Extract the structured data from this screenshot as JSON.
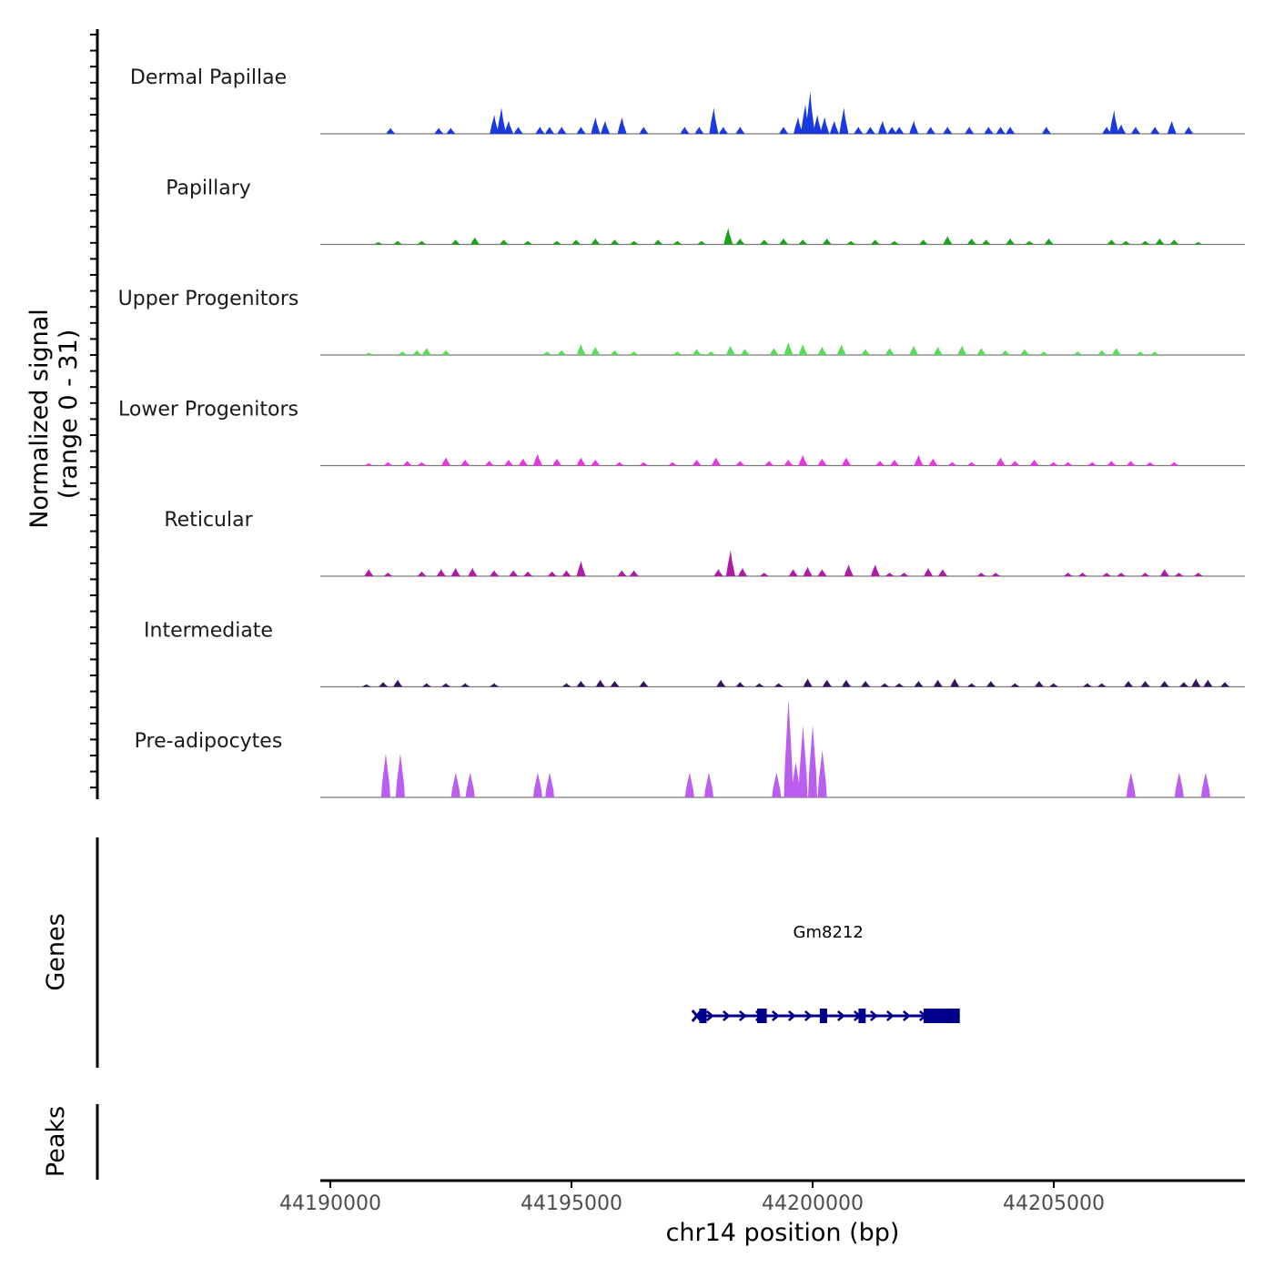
{
  "chart_data": {
    "type": "area",
    "title": "",
    "ylabel": "Normalized signal",
    "ylabel_range": "(range 0 - 31)",
    "ylim": [
      0,
      31
    ],
    "xlabel": "chr14 position (bp)",
    "xlim": [
      44189900,
      44209100
    ],
    "xticks": [
      44190000,
      44195000,
      44200000,
      44205000
    ],
    "xtick_labels": [
      "44190000",
      "44195000",
      "44200000",
      "44205000"
    ],
    "series": [
      {
        "name": "Dermal Papillae",
        "color": "#1a3ae0",
        "peaks": [
          [
            44191250,
            5
          ],
          [
            44192250,
            5
          ],
          [
            44192500,
            5
          ],
          [
            44193400,
            16
          ],
          [
            44193550,
            22
          ],
          [
            44193700,
            11
          ],
          [
            44193900,
            6
          ],
          [
            44194350,
            6
          ],
          [
            44194550,
            6
          ],
          [
            44194800,
            6
          ],
          [
            44195200,
            6
          ],
          [
            44195500,
            14
          ],
          [
            44195700,
            11
          ],
          [
            44196050,
            14
          ],
          [
            44196500,
            6
          ],
          [
            44197350,
            6
          ],
          [
            44197650,
            6
          ],
          [
            44197950,
            22
          ],
          [
            44198150,
            6
          ],
          [
            44198500,
            6
          ],
          [
            44199400,
            6
          ],
          [
            44199700,
            14
          ],
          [
            44199850,
            25
          ],
          [
            44199950,
            36
          ],
          [
            44200100,
            16
          ],
          [
            44200250,
            14
          ],
          [
            44200450,
            11
          ],
          [
            44200650,
            22
          ],
          [
            44200950,
            6
          ],
          [
            44201200,
            6
          ],
          [
            44201450,
            11
          ],
          [
            44201650,
            6
          ],
          [
            44201800,
            6
          ],
          [
            44202100,
            11
          ],
          [
            44202450,
            6
          ],
          [
            44202800,
            6
          ],
          [
            44203250,
            6
          ],
          [
            44203650,
            6
          ],
          [
            44203900,
            6
          ],
          [
            44204100,
            6
          ],
          [
            44204850,
            6
          ],
          [
            44206100,
            6
          ],
          [
            44206250,
            20
          ],
          [
            44206400,
            8
          ],
          [
            44206700,
            6
          ],
          [
            44207100,
            6
          ],
          [
            44207450,
            11
          ],
          [
            44207800,
            6
          ]
        ]
      },
      {
        "name": "Papillary",
        "color": "#19a319",
        "peaks": [
          [
            44191000,
            2
          ],
          [
            44191400,
            3
          ],
          [
            44191900,
            3
          ],
          [
            44192600,
            4
          ],
          [
            44193000,
            6
          ],
          [
            44193600,
            4
          ],
          [
            44194100,
            3
          ],
          [
            44194700,
            3
          ],
          [
            44195100,
            4
          ],
          [
            44195500,
            5
          ],
          [
            44195900,
            4
          ],
          [
            44196300,
            3
          ],
          [
            44196800,
            4
          ],
          [
            44197200,
            3
          ],
          [
            44197700,
            3
          ],
          [
            44198250,
            14
          ],
          [
            44198500,
            5
          ],
          [
            44199000,
            4
          ],
          [
            44199400,
            5
          ],
          [
            44199800,
            4
          ],
          [
            44200300,
            5
          ],
          [
            44200800,
            3
          ],
          [
            44201300,
            4
          ],
          [
            44201700,
            3
          ],
          [
            44202300,
            4
          ],
          [
            44202800,
            7
          ],
          [
            44203300,
            5
          ],
          [
            44203600,
            4
          ],
          [
            44204100,
            5
          ],
          [
            44204500,
            3
          ],
          [
            44204900,
            5
          ],
          [
            44206200,
            4
          ],
          [
            44206500,
            3
          ],
          [
            44206900,
            3
          ],
          [
            44207200,
            5
          ],
          [
            44207500,
            4
          ],
          [
            44208000,
            2
          ]
        ]
      },
      {
        "name": "Upper Progenitors",
        "color": "#5ada5a",
        "peaks": [
          [
            44190800,
            2
          ],
          [
            44191500,
            3
          ],
          [
            44191800,
            4
          ],
          [
            44192000,
            6
          ],
          [
            44192400,
            4
          ],
          [
            44194500,
            3
          ],
          [
            44194800,
            4
          ],
          [
            44195200,
            9
          ],
          [
            44195500,
            7
          ],
          [
            44195900,
            4
          ],
          [
            44196300,
            3
          ],
          [
            44197200,
            3
          ],
          [
            44197600,
            5
          ],
          [
            44197900,
            3
          ],
          [
            44198300,
            8
          ],
          [
            44198600,
            5
          ],
          [
            44199200,
            6
          ],
          [
            44199500,
            11
          ],
          [
            44199800,
            9
          ],
          [
            44200200,
            7
          ],
          [
            44200600,
            9
          ],
          [
            44201100,
            5
          ],
          [
            44201600,
            6
          ],
          [
            44202100,
            8
          ],
          [
            44202600,
            7
          ],
          [
            44203100,
            8
          ],
          [
            44203500,
            6
          ],
          [
            44204000,
            4
          ],
          [
            44204400,
            5
          ],
          [
            44204800,
            3
          ],
          [
            44205500,
            3
          ],
          [
            44206000,
            4
          ],
          [
            44206300,
            6
          ],
          [
            44206800,
            3
          ],
          [
            44207100,
            3
          ]
        ]
      },
      {
        "name": "Lower Progenitors",
        "color": "#e835e0",
        "peaks": [
          [
            44190800,
            2
          ],
          [
            44191200,
            3
          ],
          [
            44191600,
            4
          ],
          [
            44191900,
            3
          ],
          [
            44192400,
            7
          ],
          [
            44192800,
            5
          ],
          [
            44193300,
            4
          ],
          [
            44193700,
            5
          ],
          [
            44194000,
            6
          ],
          [
            44194300,
            10
          ],
          [
            44194700,
            6
          ],
          [
            44195200,
            7
          ],
          [
            44195500,
            5
          ],
          [
            44196000,
            3
          ],
          [
            44196500,
            3
          ],
          [
            44197100,
            3
          ],
          [
            44197600,
            5
          ],
          [
            44198000,
            7
          ],
          [
            44198500,
            4
          ],
          [
            44199100,
            4
          ],
          [
            44199500,
            5
          ],
          [
            44199800,
            9
          ],
          [
            44200200,
            6
          ],
          [
            44200700,
            7
          ],
          [
            44201400,
            4
          ],
          [
            44201700,
            5
          ],
          [
            44202200,
            9
          ],
          [
            44202500,
            6
          ],
          [
            44202900,
            3
          ],
          [
            44203300,
            3
          ],
          [
            44203900,
            7
          ],
          [
            44204200,
            4
          ],
          [
            44204600,
            5
          ],
          [
            44205000,
            3
          ],
          [
            44205300,
            3
          ],
          [
            44205800,
            3
          ],
          [
            44206200,
            4
          ],
          [
            44206600,
            4
          ],
          [
            44207000,
            3
          ],
          [
            44207500,
            3
          ]
        ]
      },
      {
        "name": "Reticular",
        "color": "#b01aa6",
        "peaks": [
          [
            44190800,
            6
          ],
          [
            44191200,
            3
          ],
          [
            44191900,
            4
          ],
          [
            44192300,
            6
          ],
          [
            44192600,
            7
          ],
          [
            44192950,
            7
          ],
          [
            44193400,
            5
          ],
          [
            44193800,
            5
          ],
          [
            44194100,
            4
          ],
          [
            44194600,
            4
          ],
          [
            44194900,
            5
          ],
          [
            44195200,
            13
          ],
          [
            44196050,
            5
          ],
          [
            44196300,
            5
          ],
          [
            44198050,
            6
          ],
          [
            44198300,
            22
          ],
          [
            44198550,
            7
          ],
          [
            44199000,
            3
          ],
          [
            44199600,
            6
          ],
          [
            44199900,
            8
          ],
          [
            44200200,
            6
          ],
          [
            44200750,
            10
          ],
          [
            44201300,
            10
          ],
          [
            44201600,
            3
          ],
          [
            44201900,
            3
          ],
          [
            44202400,
            7
          ],
          [
            44202700,
            6
          ],
          [
            44203500,
            3
          ],
          [
            44203800,
            3
          ],
          [
            44205300,
            3
          ],
          [
            44205600,
            3
          ],
          [
            44206100,
            3
          ],
          [
            44206400,
            3
          ],
          [
            44206900,
            3
          ],
          [
            44207300,
            6
          ],
          [
            44207600,
            3
          ],
          [
            44208000,
            3
          ]
        ]
      },
      {
        "name": "Intermediate",
        "color": "#34145e",
        "peaks": [
          [
            44190750,
            2
          ],
          [
            44191100,
            4
          ],
          [
            44191400,
            6
          ],
          [
            44192000,
            3
          ],
          [
            44192400,
            3
          ],
          [
            44192800,
            3
          ],
          [
            44193400,
            3
          ],
          [
            44194900,
            3
          ],
          [
            44195200,
            5
          ],
          [
            44195600,
            6
          ],
          [
            44195900,
            5
          ],
          [
            44196500,
            5
          ],
          [
            44198100,
            6
          ],
          [
            44198500,
            4
          ],
          [
            44198900,
            3
          ],
          [
            44199300,
            3
          ],
          [
            44199900,
            7
          ],
          [
            44200300,
            6
          ],
          [
            44200700,
            6
          ],
          [
            44201100,
            5
          ],
          [
            44201500,
            3
          ],
          [
            44201800,
            3
          ],
          [
            44202200,
            5
          ],
          [
            44202600,
            6
          ],
          [
            44202950,
            7
          ],
          [
            44203300,
            3
          ],
          [
            44203700,
            5
          ],
          [
            44204200,
            3
          ],
          [
            44204700,
            5
          ],
          [
            44205000,
            3
          ],
          [
            44205700,
            3
          ],
          [
            44206000,
            3
          ],
          [
            44206550,
            5
          ],
          [
            44206900,
            5
          ],
          [
            44207300,
            5
          ],
          [
            44207700,
            4
          ],
          [
            44207950,
            7
          ],
          [
            44208200,
            6
          ],
          [
            44208550,
            4
          ]
        ]
      },
      {
        "name": "Pre-adipocytes",
        "color": "#bb5ef0",
        "peaks": [
          [
            44191150,
            37
          ],
          [
            44191450,
            37
          ],
          [
            44192600,
            21
          ],
          [
            44192900,
            21
          ],
          [
            44194300,
            21
          ],
          [
            44194550,
            21
          ],
          [
            44197450,
            21
          ],
          [
            44197850,
            21
          ],
          [
            44199250,
            21
          ],
          [
            44199500,
            83
          ],
          [
            44199650,
            30
          ],
          [
            44199800,
            61
          ],
          [
            44200000,
            61
          ],
          [
            44200200,
            40
          ],
          [
            44206600,
            21
          ],
          [
            44207600,
            21
          ],
          [
            44208150,
            21
          ]
        ]
      }
    ],
    "gene_track": {
      "label": "Genes",
      "gene": "Gm8212",
      "start": 44197600,
      "end": 44203050,
      "color": "#00008b",
      "exons": [
        [
          44197650,
          44197800
        ],
        [
          44198850,
          44199050
        ],
        [
          44200150,
          44200300
        ],
        [
          44200950,
          44201100
        ],
        [
          44202300,
          44203050
        ]
      ]
    },
    "peak_track": {
      "label": "Peaks"
    }
  }
}
